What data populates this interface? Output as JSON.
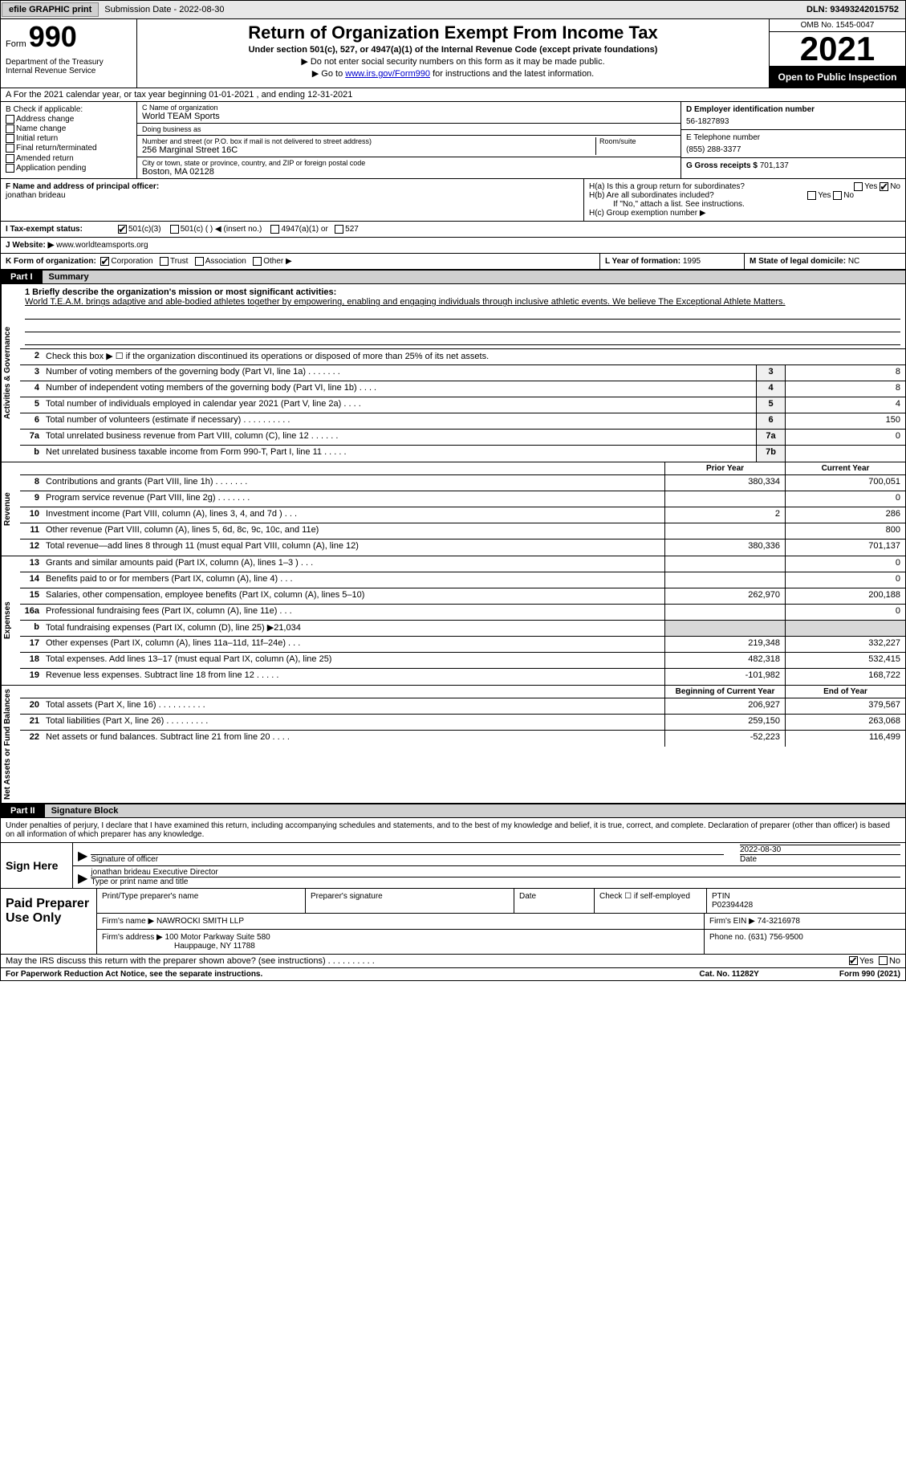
{
  "topbar": {
    "efile_btn": "efile GRAPHIC print",
    "sub_label": "Submission Date - 2022-08-30",
    "dln": "DLN: 93493242015752"
  },
  "header": {
    "form_word": "Form",
    "form_num": "990",
    "dept": "Department of the Treasury Internal Revenue Service",
    "title": "Return of Organization Exempt From Income Tax",
    "sub": "Under section 501(c), 527, or 4947(a)(1) of the Internal Revenue Code (except private foundations)",
    "note1": "▶ Do not enter social security numbers on this form as it may be made public.",
    "note2_pre": "▶ Go to ",
    "note2_link": "www.irs.gov/Form990",
    "note2_post": " for instructions and the latest information.",
    "omb": "OMB No. 1545-0047",
    "year": "2021",
    "open": "Open to Public Inspection"
  },
  "row_a": "A For the 2021 calendar year, or tax year beginning 01-01-2021   , and ending 12-31-2021",
  "col_b": {
    "label": "B Check if applicable:",
    "items": [
      "Address change",
      "Name change",
      "Initial return",
      "Final return/terminated",
      "Amended return",
      "Application pending"
    ]
  },
  "col_c": {
    "name_label": "C Name of organization",
    "name": "World TEAM Sports",
    "dba_label": "Doing business as",
    "dba": "",
    "street_label": "Number and street (or P.O. box if mail is not delivered to street address)",
    "street": "256 Marginal Street 16C",
    "suite_label": "Room/suite",
    "city_label": "City or town, state or province, country, and ZIP or foreign postal code",
    "city": "Boston, MA  02128"
  },
  "col_d": {
    "ein_label": "D Employer identification number",
    "ein": "56-1827893",
    "phone_label": "E Telephone number",
    "phone": "(855) 288-3377",
    "gross_label": "G Gross receipts $",
    "gross": "701,137"
  },
  "row_f": {
    "label": "F Name and address of principal officer:",
    "name": "jonathan brideau"
  },
  "row_h": {
    "ha": "H(a)  Is this a group return for subordinates?",
    "hb": "H(b)  Are all subordinates included?",
    "hb_note": "If \"No,\" attach a list. See instructions.",
    "hc": "H(c)  Group exemption number ▶",
    "yes": "Yes",
    "no": "No"
  },
  "row_i": {
    "label": "I  Tax-exempt status:",
    "opt1": "501(c)(3)",
    "opt2": "501(c) (  ) ◀ (insert no.)",
    "opt3": "4947(a)(1) or",
    "opt4": "527"
  },
  "row_j": {
    "label": "J  Website: ▶",
    "url": "www.worldteamsports.org"
  },
  "row_k": {
    "label": "K Form of organization:",
    "opts": [
      "Corporation",
      "Trust",
      "Association",
      "Other ▶"
    ]
  },
  "row_l": {
    "label": "L Year of formation:",
    "val": "1995"
  },
  "row_m": {
    "label": "M State of legal domicile:",
    "val": "NC"
  },
  "part1": {
    "num": "Part I",
    "title": "Summary"
  },
  "mission": {
    "label": "1  Briefly describe the organization's mission or most significant activities:",
    "text": "World T.E.A.M. brings adaptive and able-bodied athletes together by empowering, enabling and engaging individuals through inclusive athletic events. We believe The Exceptional Athlete Matters."
  },
  "line2": "Check this box ▶ ☐ if the organization discontinued its operations or disposed of more than 25% of its net assets.",
  "vtabs": {
    "gov": "Activities & Governance",
    "rev": "Revenue",
    "exp": "Expenses",
    "net": "Net Assets or Fund Balances"
  },
  "gov_lines": [
    {
      "n": "3",
      "t": "Number of voting members of the governing body (Part VI, line 1a)   .    .    .    .    .    .    .",
      "bx": "3",
      "v": "8"
    },
    {
      "n": "4",
      "t": "Number of independent voting members of the governing body (Part VI, line 1b)   .    .    .    .",
      "bx": "4",
      "v": "8"
    },
    {
      "n": "5",
      "t": "Total number of individuals employed in calendar year 2021 (Part V, line 2a)   .    .    .    .",
      "bx": "5",
      "v": "4"
    },
    {
      "n": "6",
      "t": "Total number of volunteers (estimate if necessary)   .    .    .    .    .    .    .    .    .    .",
      "bx": "6",
      "v": "150"
    },
    {
      "n": "7a",
      "t": "Total unrelated business revenue from Part VIII, column (C), line 12   .    .    .    .    .    .",
      "bx": "7a",
      "v": "0"
    },
    {
      "n": "b",
      "t": "Net unrelated business taxable income from Form 990-T, Part I, line 11   .    .    .    .    .",
      "bx": "7b",
      "v": ""
    }
  ],
  "hdr": {
    "c1": "Prior Year",
    "c2": "Current Year"
  },
  "rev_lines": [
    {
      "n": "8",
      "t": "Contributions and grants (Part VIII, line 1h)   .    .    .    .    .    .    .",
      "py": "380,334",
      "cy": "700,051"
    },
    {
      "n": "9",
      "t": "Program service revenue (Part VIII, line 2g)   .    .    .    .    .    .    .",
      "py": "",
      "cy": "0"
    },
    {
      "n": "10",
      "t": "Investment income (Part VIII, column (A), lines 3, 4, and 7d )   .    .    .",
      "py": "2",
      "cy": "286"
    },
    {
      "n": "11",
      "t": "Other revenue (Part VIII, column (A), lines 5, 6d, 8c, 9c, 10c, and 11e)",
      "py": "",
      "cy": "800"
    },
    {
      "n": "12",
      "t": "Total revenue—add lines 8 through 11 (must equal Part VIII, column (A), line 12)",
      "py": "380,336",
      "cy": "701,137"
    }
  ],
  "exp_lines": [
    {
      "n": "13",
      "t": "Grants and similar amounts paid (Part IX, column (A), lines 1–3 )   .    .    .",
      "py": "",
      "cy": "0"
    },
    {
      "n": "14",
      "t": "Benefits paid to or for members (Part IX, column (A), line 4)   .    .    .",
      "py": "",
      "cy": "0"
    },
    {
      "n": "15",
      "t": "Salaries, other compensation, employee benefits (Part IX, column (A), lines 5–10)",
      "py": "262,970",
      "cy": "200,188"
    },
    {
      "n": "16a",
      "t": "Professional fundraising fees (Part IX, column (A), line 11e)   .    .    .",
      "py": "",
      "cy": "0"
    },
    {
      "n": "b",
      "t": "Total fundraising expenses (Part IX, column (D), line 25) ▶21,034",
      "py": "shade",
      "cy": "shade"
    },
    {
      "n": "17",
      "t": "Other expenses (Part IX, column (A), lines 11a–11d, 11f–24e)   .    .    .",
      "py": "219,348",
      "cy": "332,227"
    },
    {
      "n": "18",
      "t": "Total expenses. Add lines 13–17 (must equal Part IX, column (A), line 25)",
      "py": "482,318",
      "cy": "532,415"
    },
    {
      "n": "19",
      "t": "Revenue less expenses. Subtract line 18 from line 12   .    .    .    .    .",
      "py": "-101,982",
      "cy": "168,722"
    }
  ],
  "hdr2": {
    "c1": "Beginning of Current Year",
    "c2": "End of Year"
  },
  "net_lines": [
    {
      "n": "20",
      "t": "Total assets (Part X, line 16)   .    .    .    .    .    .    .    .    .    .",
      "py": "206,927",
      "cy": "379,567"
    },
    {
      "n": "21",
      "t": "Total liabilities (Part X, line 26)   .    .    .    .    .    .    .    .    .",
      "py": "259,150",
      "cy": "263,068"
    },
    {
      "n": "22",
      "t": "Net assets or fund balances. Subtract line 21 from line 20   .    .    .    .",
      "py": "-52,223",
      "cy": "116,499"
    }
  ],
  "part2": {
    "num": "Part II",
    "title": "Signature Block"
  },
  "sig_intro": "Under penalties of perjury, I declare that I have examined this return, including accompanying schedules and statements, and to the best of my knowledge and belief, it is true, correct, and complete. Declaration of preparer (other than officer) is based on all information of which preparer has any knowledge.",
  "sign": {
    "label": "Sign Here",
    "officer_sig": "Signature of officer",
    "date": "2022-08-30",
    "date_label": "Date",
    "name": "jonathan brideau  Executive Director",
    "name_label": "Type or print name and title"
  },
  "paid": {
    "label": "Paid Preparer Use Only",
    "r1": {
      "c1": "Print/Type preparer's name",
      "c2": "Preparer's signature",
      "c3": "Date",
      "c4_pre": "Check ☐ if self-employed",
      "c5_l": "PTIN",
      "c5_v": "P02394428"
    },
    "r2": {
      "c1": "Firm's name    ▶",
      "v1": "NAWROCKI SMITH LLP",
      "c2": "Firm's EIN ▶",
      "v2": "74-3216978"
    },
    "r3": {
      "c1": "Firm's address ▶",
      "v1": "100 Motor Parkway Suite 580",
      "v1b": "Hauppauge, NY  11788",
      "c2": "Phone no.",
      "v2": "(631) 756-9500"
    }
  },
  "discuss": {
    "text": "May the IRS discuss this return with the preparer shown above? (see instructions)   .    .    .    .    .    .    .    .    .    .",
    "yes": "Yes",
    "no": "No"
  },
  "footer": {
    "left": "For Paperwork Reduction Act Notice, see the separate instructions.",
    "mid": "Cat. No. 11282Y",
    "right": "Form 990 (2021)"
  }
}
